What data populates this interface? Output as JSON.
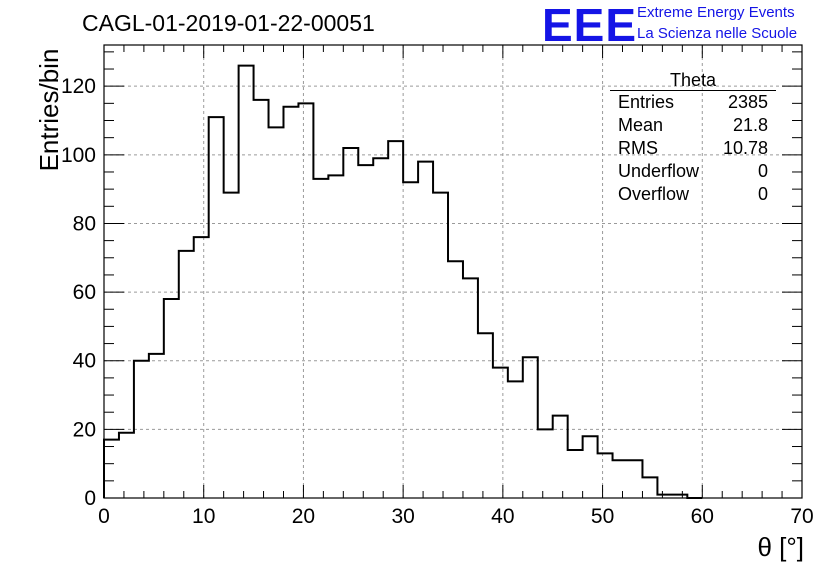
{
  "header": {
    "title": "CAGL-01-2019-01-22-00051",
    "logo_text": "EEE",
    "logo_line1": "Extreme Energy Events",
    "logo_line2": "La Scienza nelle Scuole"
  },
  "stats_box": {
    "title": "Theta",
    "rows": [
      {
        "label": "Entries",
        "value": "2385"
      },
      {
        "label": "Mean",
        "value": "21.8"
      },
      {
        "label": "RMS",
        "value": "10.78"
      },
      {
        "label": "Underflow",
        "value": "0"
      },
      {
        "label": "Overflow",
        "value": "0"
      }
    ]
  },
  "colors": {
    "line": "#000000",
    "grid": "#9a9a9a",
    "logo": "#1414e6"
  },
  "chart_data": {
    "type": "bar",
    "histogram": true,
    "xlabel": "θ [°]",
    "ylabel": "Entries/bin",
    "xlim": [
      0,
      70
    ],
    "ylim": [
      0,
      132
    ],
    "xticks": [
      0,
      10,
      20,
      30,
      40,
      50,
      60,
      70
    ],
    "yticks": [
      0,
      20,
      40,
      60,
      80,
      100,
      120
    ],
    "grid": true,
    "bin_width": 1.5,
    "bin_edges_start": 0,
    "values": [
      17,
      19,
      40,
      42,
      58,
      72,
      76,
      111,
      89,
      126,
      116,
      108,
      114,
      115,
      93,
      94,
      102,
      97,
      99,
      104,
      92,
      98,
      89,
      69,
      64,
      48,
      38,
      34,
      41,
      20,
      24,
      14,
      18,
      13,
      11,
      11,
      6,
      1,
      1,
      0
    ]
  }
}
